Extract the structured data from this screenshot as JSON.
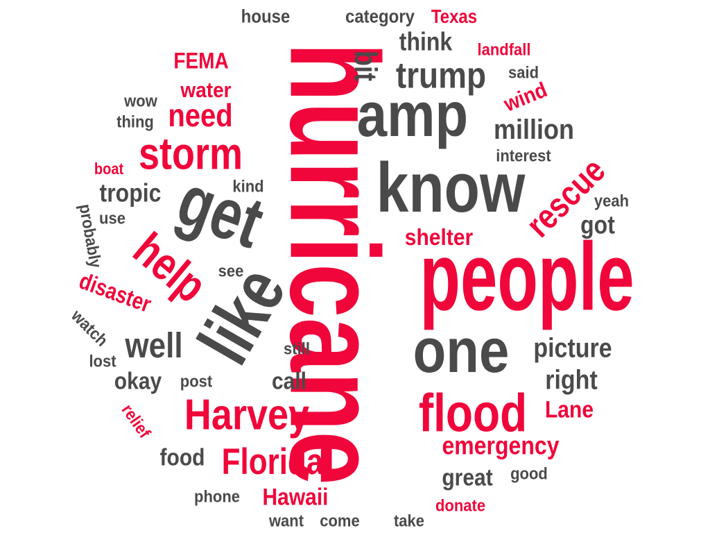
{
  "colors": {
    "accent": "#f0063a",
    "dark": "#4a4a4a",
    "background": "#ffffff"
  },
  "words": [
    {
      "text": "hurricane",
      "color": "accent"
    },
    {
      "text": "people",
      "color": "accent"
    },
    {
      "text": "know",
      "color": "dark"
    },
    {
      "text": "amp",
      "color": "dark"
    },
    {
      "text": "one",
      "color": "dark"
    },
    {
      "text": "get",
      "color": "dark"
    },
    {
      "text": "like",
      "color": "dark"
    },
    {
      "text": "flood",
      "color": "accent"
    },
    {
      "text": "Harvey",
      "color": "accent"
    },
    {
      "text": "storm",
      "color": "accent"
    },
    {
      "text": "help",
      "color": "accent"
    },
    {
      "text": "trump",
      "color": "dark"
    },
    {
      "text": "Florida",
      "color": "accent"
    },
    {
      "text": "rescue",
      "color": "accent"
    },
    {
      "text": "need",
      "color": "accent"
    },
    {
      "text": "well",
      "color": "dark"
    },
    {
      "text": "bit",
      "color": "dark"
    },
    {
      "text": "million",
      "color": "dark"
    },
    {
      "text": "picture",
      "color": "dark"
    },
    {
      "text": "right",
      "color": "dark"
    },
    {
      "text": "emergency",
      "color": "accent"
    },
    {
      "text": "great",
      "color": "dark"
    },
    {
      "text": "Hawaii",
      "color": "accent"
    },
    {
      "text": "shelter",
      "color": "accent"
    },
    {
      "text": "think",
      "color": "dark"
    },
    {
      "text": "tropic",
      "color": "dark"
    },
    {
      "text": "okay",
      "color": "dark"
    },
    {
      "text": "call",
      "color": "dark"
    },
    {
      "text": "food",
      "color": "dark"
    },
    {
      "text": "Lane",
      "color": "accent"
    },
    {
      "text": "disaster",
      "color": "accent"
    },
    {
      "text": "FEMA",
      "color": "accent"
    },
    {
      "text": "water",
      "color": "accent"
    },
    {
      "text": "got",
      "color": "dark"
    },
    {
      "text": "wind",
      "color": "accent"
    },
    {
      "text": "house",
      "color": "dark"
    },
    {
      "text": "category",
      "color": "dark"
    },
    {
      "text": "Texas",
      "color": "accent"
    },
    {
      "text": "landfall",
      "color": "accent"
    },
    {
      "text": "said",
      "color": "dark"
    },
    {
      "text": "wow",
      "color": "dark"
    },
    {
      "text": "thing",
      "color": "dark"
    },
    {
      "text": "interest",
      "color": "dark"
    },
    {
      "text": "boat",
      "color": "accent"
    },
    {
      "text": "kind",
      "color": "dark"
    },
    {
      "text": "yeah",
      "color": "dark"
    },
    {
      "text": "use",
      "color": "dark"
    },
    {
      "text": "probably",
      "color": "dark"
    },
    {
      "text": "see",
      "color": "dark"
    },
    {
      "text": "watch",
      "color": "dark"
    },
    {
      "text": "still",
      "color": "dark"
    },
    {
      "text": "lost",
      "color": "dark"
    },
    {
      "text": "post",
      "color": "dark"
    },
    {
      "text": "relief",
      "color": "accent"
    },
    {
      "text": "good",
      "color": "dark"
    },
    {
      "text": "phone",
      "color": "dark"
    },
    {
      "text": "donate",
      "color": "accent"
    },
    {
      "text": "want",
      "color": "dark"
    },
    {
      "text": "come",
      "color": "dark"
    },
    {
      "text": "take",
      "color": "dark"
    }
  ]
}
